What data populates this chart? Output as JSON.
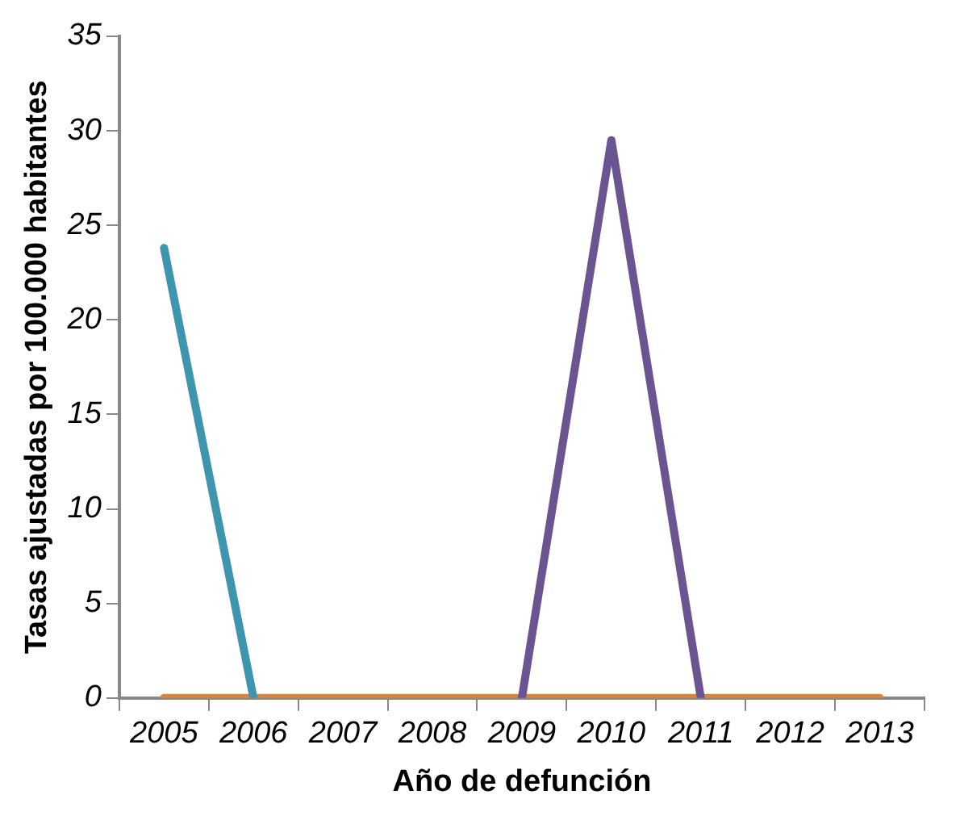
{
  "chart_data": {
    "type": "line",
    "xlabel": "Año de defunción",
    "ylabel": "Tasas ajustadas por 100.000 habitantes",
    "categories": [
      "2005",
      "2006",
      "2007",
      "2008",
      "2009",
      "2010",
      "2011",
      "2012",
      "2013"
    ],
    "series": [
      {
        "color": "#3d96ae",
        "values": [
          23.8,
          0,
          null,
          null,
          null,
          null,
          null,
          null,
          null
        ]
      },
      {
        "color": "#6a5592",
        "values": [
          null,
          null,
          null,
          null,
          0,
          29.5,
          0,
          null,
          null
        ]
      },
      {
        "color": "#db843d",
        "values": [
          0,
          0,
          0,
          0,
          0,
          0,
          0,
          0,
          0
        ]
      }
    ],
    "ylim": [
      0,
      35
    ],
    "yticks": [
      0,
      5,
      10,
      15,
      20,
      25,
      30,
      35
    ],
    "grid": false,
    "legend": false,
    "marker": "none",
    "line_style": "solid"
  }
}
